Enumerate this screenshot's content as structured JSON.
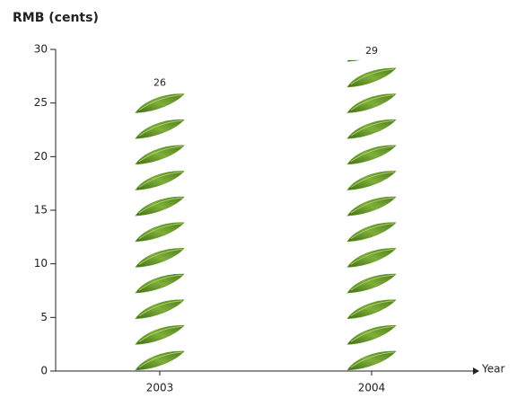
{
  "chart_data": {
    "type": "bar",
    "y_axis_label": "RMB (cents)",
    "x_axis_label": "Year",
    "categories": [
      "2003",
      "2004"
    ],
    "values": [
      26,
      29
    ],
    "color": "#6b9b2c",
    "ylim": [
      0,
      30
    ],
    "yticks": [
      0,
      5,
      10,
      15,
      20,
      25,
      30
    ]
  }
}
